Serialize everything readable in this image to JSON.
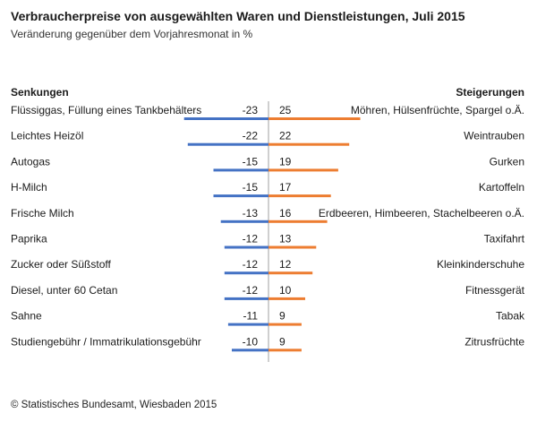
{
  "chart_data": {
    "type": "bar",
    "title": "Verbraucherpreise von ausgewählten Waren und Dienstleistungen, Juli 2015",
    "subtitle": "Veränderung gegenüber dem Vorjahresmonat in %",
    "left_header": "Senkungen",
    "right_header": "Steigerungen",
    "unit": "%",
    "series": [
      {
        "name": "Senkungen",
        "color": "#4472c4",
        "categories": [
          "Flüssiggas, Füllung eines Tankbehälters",
          "Leichtes Heizöl",
          "Autogas",
          "H-Milch",
          "Frische Milch",
          "Paprika",
          "Zucker oder Süßstoff",
          "Diesel, unter 60 Cetan",
          "Sahne",
          "Studiengebühr / Immatrikulationsgebühr"
        ],
        "values": [
          -23,
          -22,
          -15,
          -15,
          -13,
          -12,
          -12,
          -12,
          -11,
          -10
        ]
      },
      {
        "name": "Steigerungen",
        "color": "#ed7d31",
        "categories": [
          "Möhren, Hülsenfrüchte, Spargel o.Ä.",
          "Weintrauben",
          "Gurken",
          "Kartoffeln",
          "Erdbeeren, Himbeeren, Stachelbeeren o.Ä.",
          "Taxifahrt",
          "Kleinkinderschuhe",
          "Fitnessgerät",
          "Tabak",
          "Zitrusfrüchte"
        ],
        "values": [
          25,
          22,
          19,
          17,
          16,
          13,
          12,
          10,
          9,
          9
        ]
      }
    ],
    "source": "© Statistisches Bundesamt, Wiesbaden 2015"
  }
}
